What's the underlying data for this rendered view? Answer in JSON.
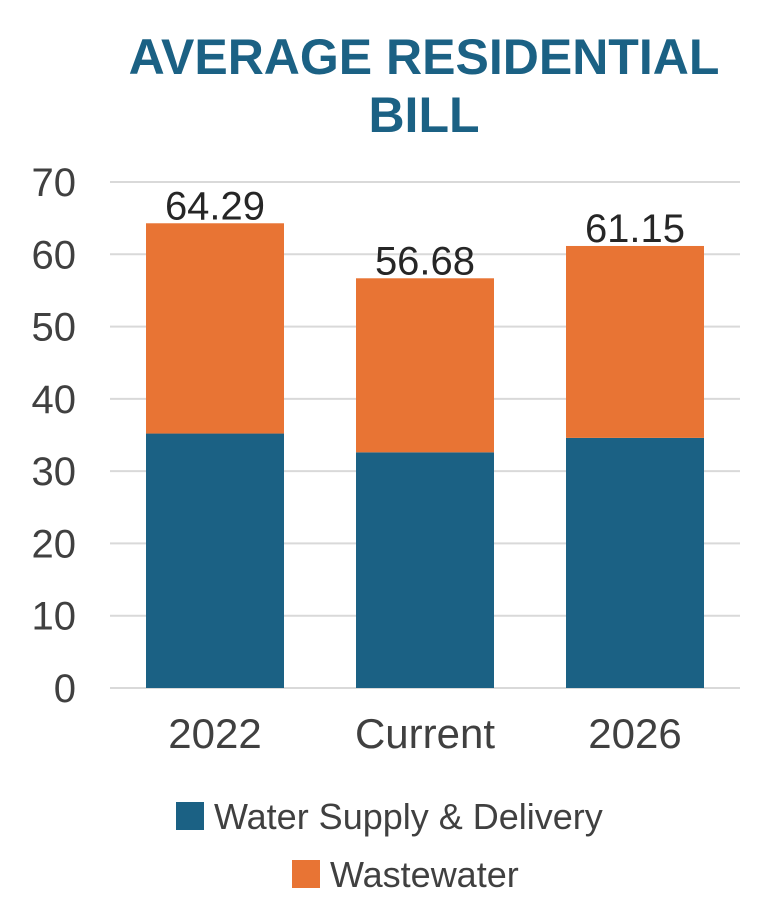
{
  "chart_data": {
    "type": "bar",
    "stacked": true,
    "title": "AVERAGE RESIDENTIAL BILL",
    "title_lines": [
      "AVERAGE RESIDENTIAL",
      "BILL"
    ],
    "categories": [
      "2022",
      "Current",
      "2026"
    ],
    "series": [
      {
        "name": "Water Supply & Delivery",
        "color": "#1b6184",
        "values": [
          35.2,
          32.6,
          34.6
        ]
      },
      {
        "name": "Wastewater",
        "color": "#e87434",
        "values": [
          29.09,
          24.08,
          26.55
        ]
      }
    ],
    "totals": [
      "64.29",
      "56.68",
      "61.15"
    ],
    "y_ticks": [
      "0",
      "10",
      "20",
      "30",
      "40",
      "50",
      "60",
      "70"
    ],
    "ylim": [
      0,
      70
    ],
    "grid": true,
    "legend_position": "bottom",
    "title_color": "#1b6184",
    "text_color": "#404040",
    "grid_color": "#d9d9d9"
  }
}
